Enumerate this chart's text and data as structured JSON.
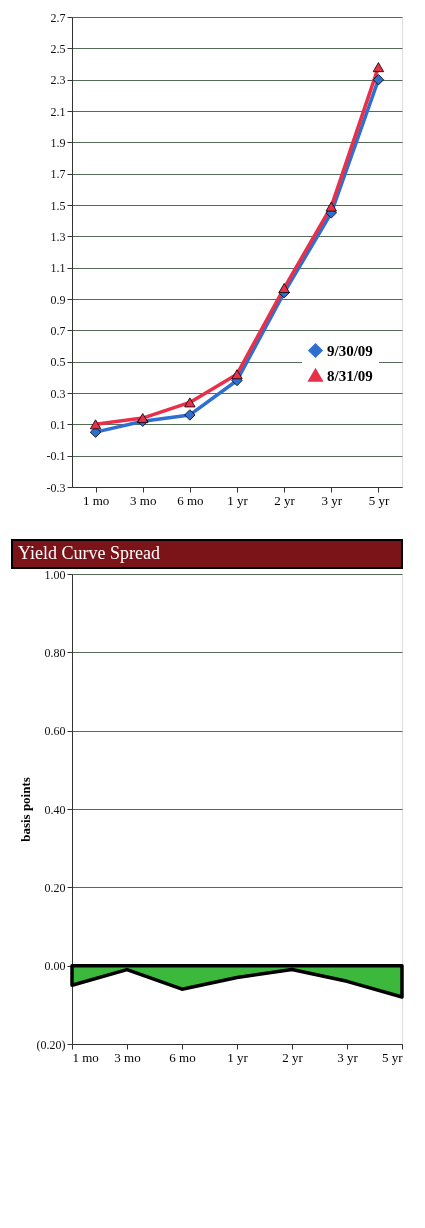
{
  "chart_data": [
    {
      "type": "line",
      "categories": [
        "1 mo",
        "3 mo",
        "6 mo",
        "1 yr",
        "2 yr",
        "3 yr",
        "5 yr"
      ],
      "series": [
        {
          "name": "9/30/09",
          "color": "#2e6fd0",
          "marker": "diamond",
          "values": [
            0.05,
            0.12,
            0.16,
            0.38,
            0.94,
            1.45,
            2.3
          ]
        },
        {
          "name": "8/31/09",
          "color": "#e8304a",
          "marker": "triangle",
          "values": [
            0.1,
            0.14,
            0.24,
            0.42,
            0.97,
            1.49,
            2.38
          ]
        }
      ],
      "ylim": [
        -0.3,
        2.7
      ],
      "yticks": [
        -0.3,
        -0.1,
        0.1,
        0.3,
        0.5,
        0.7,
        0.9,
        1.1,
        1.3,
        1.5,
        1.7,
        1.9,
        2.1,
        2.3,
        2.5,
        2.7
      ],
      "grid": "y",
      "legend": "bottom right",
      "line_style": "solid"
    },
    {
      "type": "area",
      "title": "Yield Curve Spread",
      "ylabel": "basis points",
      "categories": [
        "1 mo",
        "3 mo",
        "6 mo",
        "1 yr",
        "2 yr",
        "3 yr",
        "5 yr"
      ],
      "values": [
        -0.05,
        -0.01,
        -0.06,
        -0.03,
        -0.01,
        -0.04,
        -0.08
      ],
      "color": "#3cb93c",
      "ylim": [
        -0.2,
        1.0
      ],
      "yticks": [
        {
          "value": -0.2,
          "label": "(0.20)"
        },
        {
          "value": 0,
          "label": "0.00"
        },
        {
          "value": 0.2,
          "label": "0.20"
        },
        {
          "value": 0.4,
          "label": "0.40"
        },
        {
          "value": 0.6,
          "label": "0.60"
        },
        {
          "value": 0.8,
          "label": "0.80"
        },
        {
          "value": 1.0,
          "label": "1.00"
        }
      ],
      "grid": "y"
    }
  ]
}
